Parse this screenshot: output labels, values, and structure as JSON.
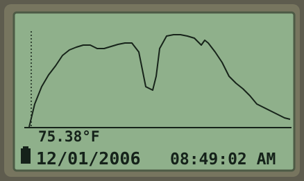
{
  "chart_data": {
    "type": "line",
    "color": "#17241a",
    "x": [
      0,
      8,
      18,
      28,
      38,
      48,
      58,
      68,
      78,
      88,
      98,
      108,
      118,
      128,
      138,
      148,
      158,
      163,
      168,
      178,
      183,
      188,
      198,
      208,
      218,
      228,
      238,
      248,
      253,
      258,
      268,
      278,
      288,
      298,
      308,
      318,
      328,
      338,
      348,
      358,
      368,
      376
    ],
    "values": [
      0,
      33,
      58,
      75,
      88,
      103,
      111,
      115,
      118,
      118,
      113,
      113,
      116,
      119,
      121,
      121,
      108,
      83,
      58,
      53,
      73,
      113,
      131,
      133,
      133,
      131,
      128,
      118,
      125,
      121,
      108,
      93,
      73,
      63,
      55,
      45,
      33,
      28,
      23,
      18,
      13,
      11
    ],
    "xlim": [
      0,
      376
    ],
    "ylim": [
      0,
      130
    ]
  },
  "display": {
    "temperature": "75.38°F",
    "date": "12/01/2006",
    "time": "08:49:02 AM"
  }
}
